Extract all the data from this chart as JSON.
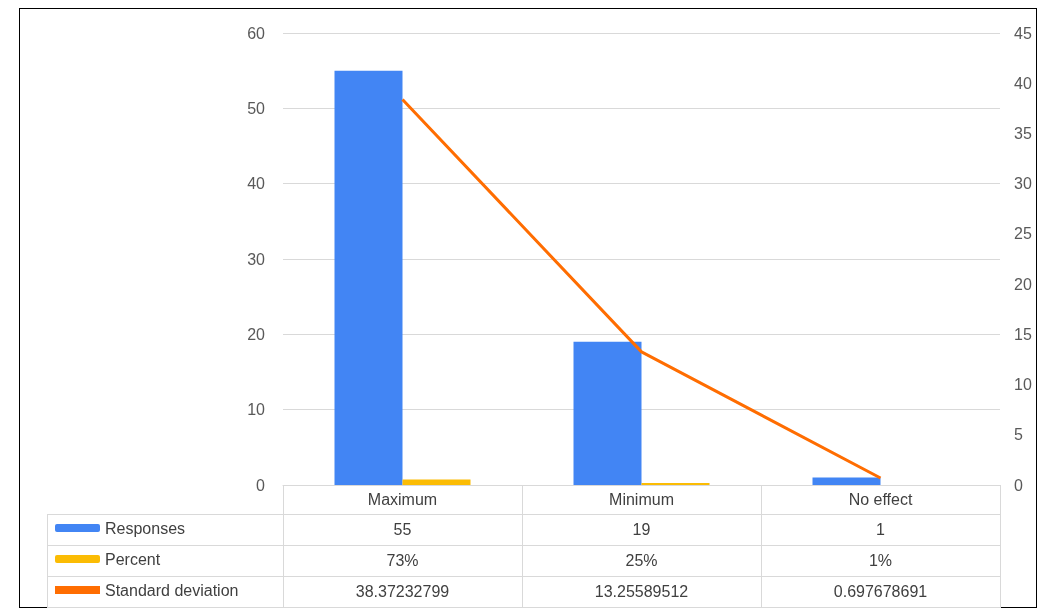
{
  "chart_data": {
    "type": "bar",
    "categories": [
      "Maximum",
      "Minimum",
      "No effect"
    ],
    "series": [
      {
        "name": "Responses",
        "color": "#4285f4",
        "values": [
          55,
          19,
          1
        ],
        "value_labels": [
          "55",
          "19",
          "1"
        ]
      },
      {
        "name": "Percent",
        "color": "#fbbc04",
        "values": [
          0.73,
          0.25,
          0.01
        ],
        "value_labels": [
          "73%",
          "25%",
          "1%"
        ]
      },
      {
        "name": "Standard deviation",
        "type": "line",
        "axis": "y2",
        "color": "#ff6d01",
        "values": [
          38.37232799,
          13.25589512,
          0.697678691
        ],
        "value_labels": [
          "38.37232799",
          "13.25589512",
          "0.697678691"
        ]
      }
    ],
    "ylim": [
      0,
      60
    ],
    "yticks": [
      0,
      10,
      20,
      30,
      40,
      50,
      60
    ],
    "y2lim": [
      0,
      45
    ],
    "y2ticks": [
      0,
      5,
      10,
      15,
      20,
      25,
      30,
      35,
      40,
      45
    ],
    "grid": "y",
    "legend": "bottom left"
  }
}
